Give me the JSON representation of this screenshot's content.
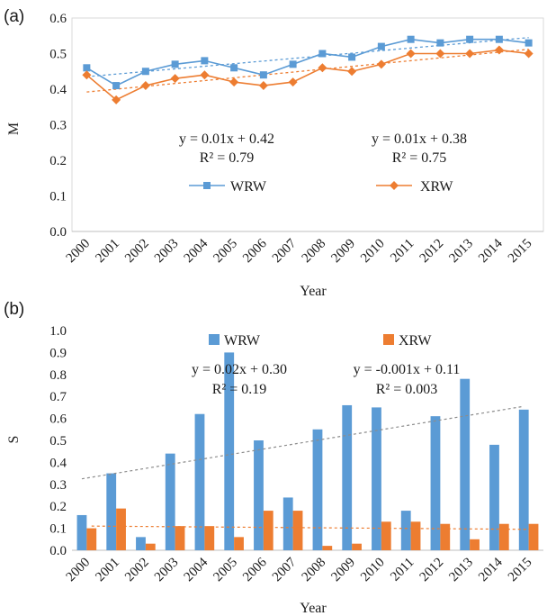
{
  "chart_data": [
    {
      "panel_label": "(a)",
      "type": "line",
      "xlabel": "Year",
      "ylabel": "M",
      "ylim": [
        0.0,
        0.6
      ],
      "yticks": [
        "0.0",
        "0.1",
        "0.2",
        "0.3",
        "0.4",
        "0.5",
        "0.6"
      ],
      "categories": [
        "2000",
        "2001",
        "2002",
        "2003",
        "2004",
        "2005",
        "2006",
        "2007",
        "2008",
        "2009",
        "2010",
        "2011",
        "2012",
        "2013",
        "2014",
        "2015"
      ],
      "grid": false,
      "legend_position": "center",
      "series": [
        {
          "name": "WRW",
          "color": "#5b9bd5",
          "marker": "square",
          "values": [
            0.46,
            0.41,
            0.45,
            0.47,
            0.48,
            0.46,
            0.44,
            0.47,
            0.5,
            0.49,
            0.52,
            0.54,
            0.53,
            0.54,
            0.54,
            0.53
          ],
          "trend": [
            0.435,
            0.545
          ],
          "equation": "y = 0.01x + 0.42",
          "r2": "R² = 0.79"
        },
        {
          "name": "XRW",
          "color": "#ed7d31",
          "marker": "diamond",
          "values": [
            0.44,
            0.37,
            0.41,
            0.43,
            0.44,
            0.42,
            0.41,
            0.42,
            0.46,
            0.45,
            0.47,
            0.5,
            0.5,
            0.5,
            0.51,
            0.5
          ],
          "trend": [
            0.392,
            0.512
          ],
          "equation": "y = 0.01x + 0.38",
          "r2": "R² = 0.75"
        }
      ]
    },
    {
      "panel_label": "(b)",
      "type": "bar",
      "xlabel": "Year",
      "ylabel": "S",
      "ylim": [
        0.0,
        1.0
      ],
      "yticks": [
        "0.0",
        "0.1",
        "0.2",
        "0.3",
        "0.4",
        "0.5",
        "0.6",
        "0.7",
        "0.8",
        "0.9",
        "1.0"
      ],
      "categories": [
        "2000",
        "2001",
        "2002",
        "2003",
        "2004",
        "2005",
        "2006",
        "2007",
        "2008",
        "2009",
        "2010",
        "2011",
        "2012",
        "2013",
        "2014",
        "2015"
      ],
      "grid": false,
      "legend_position": "top",
      "series": [
        {
          "name": "WRW",
          "color": "#5b9bd5",
          "values": [
            0.16,
            0.35,
            0.06,
            0.44,
            0.62,
            0.9,
            0.5,
            0.24,
            0.55,
            0.66,
            0.65,
            0.18,
            0.61,
            0.78,
            0.48,
            0.64
          ],
          "trend": [
            0.325,
            0.655
          ],
          "equation": "y = 0.02x + 0.30",
          "r2": "R² = 0.19"
        },
        {
          "name": "XRW",
          "color": "#ed7d31",
          "values": [
            0.1,
            0.19,
            0.03,
            0.11,
            0.11,
            0.06,
            0.18,
            0.18,
            0.02,
            0.03,
            0.13,
            0.13,
            0.12,
            0.05,
            0.12,
            0.12
          ],
          "trend": [
            0.11,
            0.095
          ],
          "equation": "y = -0.001x + 0.11",
          "r2": "R² = 0.003"
        }
      ]
    }
  ]
}
